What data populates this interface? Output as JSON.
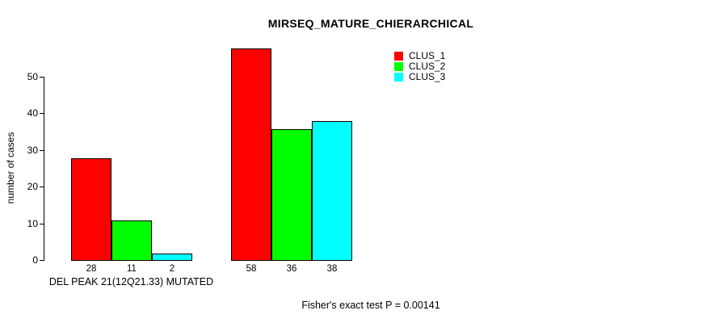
{
  "chart_data": {
    "type": "bar",
    "title": "MIRSEQ_MATURE_CHIERARCHICAL",
    "ylabel": "number of cases",
    "yticks": [
      0,
      10,
      20,
      30,
      40,
      50
    ],
    "ylim": [
      0,
      58
    ],
    "grid": false,
    "legend_position": "top-right",
    "categories": [
      "DEL PEAK 21(12Q21.33) MUTATED",
      ""
    ],
    "series": [
      {
        "name": "CLUS_1",
        "color": "#ff0000",
        "values": [
          28,
          58
        ]
      },
      {
        "name": "CLUS_2",
        "color": "#00ff00",
        "values": [
          11,
          36
        ]
      },
      {
        "name": "CLUS_3",
        "color": "#00ffff",
        "values": [
          2,
          38
        ]
      }
    ],
    "bar_value_labels": [
      [
        28,
        11,
        2
      ],
      [
        58,
        36,
        38
      ]
    ],
    "annotation": "Fisher's exact test P = 0.00141",
    "colors": {
      "axis": "#000000",
      "background": "#ffffff",
      "text": "#000000"
    }
  }
}
